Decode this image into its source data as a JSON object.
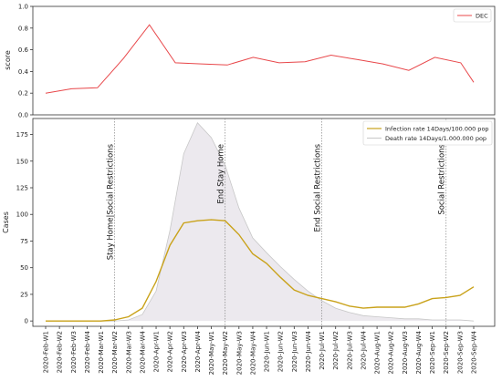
{
  "chart_data": [
    {
      "type": "line",
      "ylabel": "score",
      "ylim": [
        0.0,
        1.0
      ],
      "yticks": [
        "0.0",
        "0.2",
        "0.4",
        "0.6",
        "0.8",
        "1.0"
      ],
      "legend": "top-right",
      "categories_x": [
        0,
        1,
        2,
        3,
        4,
        5,
        6,
        7,
        8,
        9,
        10,
        11,
        12,
        13,
        14,
        15,
        16,
        17,
        18,
        19,
        20,
        21,
        22,
        23,
        24,
        25,
        26,
        27,
        28,
        29,
        30,
        31,
        32,
        33
      ],
      "series": [
        {
          "name": "DEC",
          "color": "#e8474a",
          "x": [
            0,
            2,
            4,
            6,
            8,
            10,
            12,
            14,
            16,
            18,
            20,
            22,
            24,
            26,
            28,
            30,
            32,
            33
          ],
          "values": [
            0.2,
            0.24,
            0.25,
            0.52,
            0.83,
            0.48,
            0.47,
            0.46,
            0.53,
            0.48,
            0.49,
            0.55,
            0.51,
            0.47,
            0.41,
            0.53,
            0.48,
            0.3
          ]
        }
      ]
    },
    {
      "type": "line",
      "ylabel": "Cases",
      "ylim": [
        -5,
        190
      ],
      "yticks": [
        "0",
        "25",
        "50",
        "75",
        "100",
        "125",
        "150",
        "175"
      ],
      "legend": "top-right",
      "categories": [
        "2020-Feb-W1",
        "2020-Feb-W2",
        "2020-Feb-W3",
        "2020-Feb-W4",
        "2020-Mar-W1",
        "2020-Mar-W2",
        "2020-Mar-W3",
        "2020-Mar-W4",
        "2020-Apr-W1",
        "2020-Apr-W2",
        "2020-Apr-W3",
        "2020-Apr-W4",
        "2020-May-W1",
        "2020-May-W2",
        "2020-May-W3",
        "2020-May-W4",
        "2020-Jun-W1",
        "2020-Jun-W2",
        "2020-Jun-W3",
        "2020-Jun-W4",
        "2020-Jul-W1",
        "2020-Jul-W2",
        "2020-Jul-W3",
        "2020-Jul-W4",
        "2020-Aug-W1",
        "2020-Aug-W2",
        "2020-Aug-W3",
        "2020-Aug-W4",
        "2020-Sep-W1",
        "2020-Sep-W2",
        "2020-Sep-W3",
        "2020-Sep-W4"
      ],
      "series": [
        {
          "name": "Infection rate 14Days/100.000 pop",
          "color": "#c9a21a",
          "values": [
            0,
            0,
            0,
            0,
            0,
            1,
            4,
            12,
            37,
            71,
            92,
            94,
            95,
            94,
            81,
            63,
            54,
            41,
            29,
            24,
            21,
            18,
            14,
            12,
            13,
            13,
            13,
            16,
            21,
            22,
            24,
            32
          ]
        },
        {
          "name": "Death rate 14Days/1.000.000 pop",
          "color": "#c7c7c7",
          "fill": "#ece9ee",
          "values": [
            0,
            0,
            0,
            0,
            0,
            0,
            1,
            6,
            28,
            85,
            157,
            186,
            172,
            146,
            106,
            78,
            64,
            51,
            39,
            28,
            19,
            12,
            8,
            5,
            4,
            3,
            2,
            2,
            1,
            1,
            1,
            0
          ]
        }
      ],
      "annotations": [
        {
          "x": 5,
          "label": "Stay Home|Social Restrictions"
        },
        {
          "x": 13,
          "label": "End Stay Home"
        },
        {
          "x": 20,
          "label": "End Social Restrictions"
        },
        {
          "x": 29,
          "label": "Social Restrictions"
        }
      ]
    }
  ]
}
